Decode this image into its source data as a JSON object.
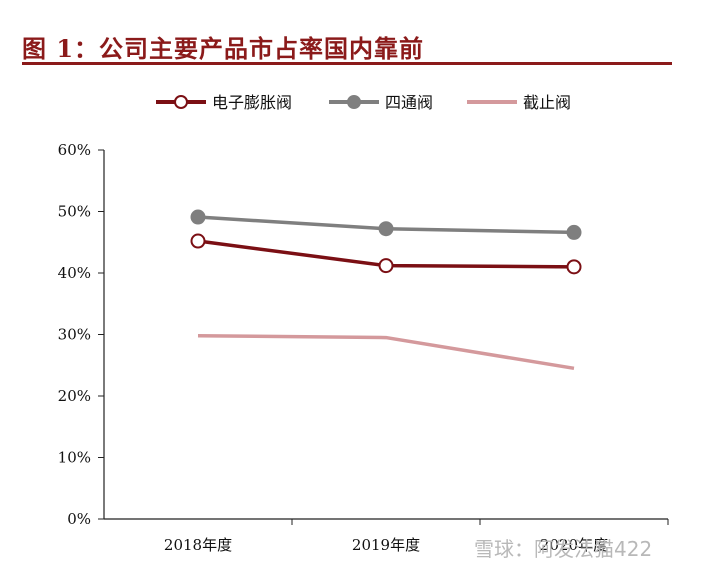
{
  "page_title": "图 1：公司主要产品市占率国内靠前",
  "watermark": "雪球：阿发法猫422",
  "chart_data": {
    "type": "line",
    "title": "图 1：公司主要产品市占率国内靠前",
    "xlabel": "",
    "ylabel": "",
    "categories": [
      "2018年度",
      "2019年度",
      "2020年度"
    ],
    "y_ticks": [
      "0%",
      "10%",
      "20%",
      "30%",
      "40%",
      "50%",
      "60%"
    ],
    "ylim": [
      0,
      60
    ],
    "legend_position": "top",
    "grid": false,
    "series": [
      {
        "name": "电子膨胀阀",
        "values": [
          45.2,
          41.2,
          41.0
        ],
        "color": "#7b0f14",
        "marker": "open-circle"
      },
      {
        "name": "四通阀",
        "values": [
          49.1,
          47.2,
          46.6
        ],
        "color": "#7f7f7f",
        "marker": "filled-circle"
      },
      {
        "name": "截止阀",
        "values": [
          29.8,
          29.5,
          24.5
        ],
        "color": "#d4999c",
        "marker": "none"
      }
    ]
  }
}
